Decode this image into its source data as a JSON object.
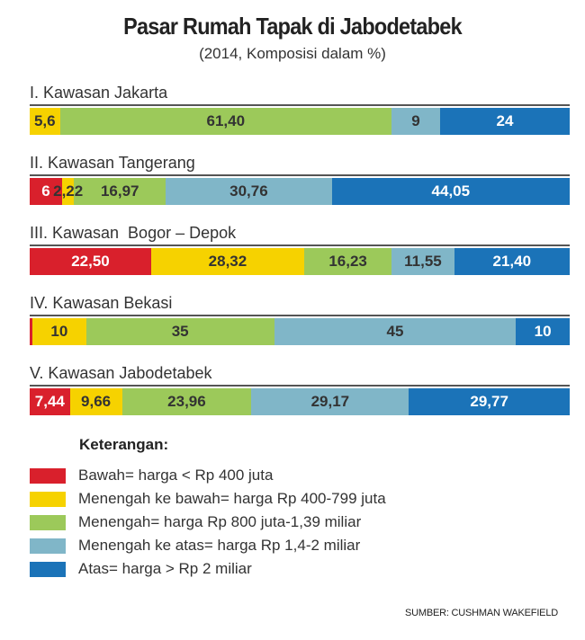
{
  "title": "Pasar Rumah Tapak di Jabodetabek",
  "subtitle": "(2014, Komposisi dalam %)",
  "colors": {
    "bawah": "#d9202c",
    "menengah_ke_bawah": "#f6d200",
    "menengah": "#9cc95a",
    "menengah_ke_atas": "#80b6c8",
    "atas": "#1b73b8"
  },
  "legend_title": "Keterangan:",
  "legend": [
    {
      "key": "bawah",
      "label": "Bawah= harga < Rp 400 juta"
    },
    {
      "key": "menengah_ke_bawah",
      "label": "Menengah ke bawah= harga Rp 400-799 juta"
    },
    {
      "key": "menengah",
      "label": "Menengah= harga Rp 800 juta-1,39 miliar"
    },
    {
      "key": "menengah_ke_atas",
      "label": "Menengah ke atas= harga Rp 1,4-2 miliar"
    },
    {
      "key": "atas",
      "label": "Atas= harga > Rp 2 miliar"
    }
  ],
  "source": "SUMBER: CUSHMAN WAKEFIELD",
  "chart_data": {
    "type": "bar",
    "orientation": "horizontal-stacked-100",
    "title": "Pasar Rumah Tapak di Jabodetabek",
    "subtitle": "(2014, Komposisi dalam %)",
    "series_keys": [
      "bawah",
      "menengah_ke_bawah",
      "menengah",
      "menengah_ke_atas",
      "atas"
    ],
    "categories": [
      {
        "label": "I. Kawasan Jakarta",
        "values": [
          0,
          5.6,
          61.4,
          9,
          24
        ],
        "labels": [
          "",
          "5,6",
          "61,40",
          "9",
          "24"
        ]
      },
      {
        "label": "II. Kawasan Tangerang",
        "values": [
          6,
          2.22,
          16.97,
          30.76,
          44.05
        ],
        "labels": [
          "6",
          "2,22",
          "16,97",
          "30,76",
          "44,05"
        ]
      },
      {
        "label": "III. Kawasan  Bogor – Depok",
        "values": [
          22.5,
          28.32,
          16.23,
          11.55,
          21.4
        ],
        "labels": [
          "22,50",
          "28,32",
          "16,23",
          "11,55",
          "21,40"
        ]
      },
      {
        "label": "IV. Kawasan Bekasi",
        "values": [
          0.5,
          10,
          35,
          45,
          10
        ],
        "labels": [
          "",
          "10",
          "35",
          "45",
          "10"
        ]
      },
      {
        "label": "V. Kawasan Jabodetabek",
        "values": [
          7.44,
          9.66,
          23.96,
          29.17,
          29.77
        ],
        "labels": [
          "7,44",
          "9,66",
          "23,96",
          "29,17",
          "29,77"
        ]
      }
    ]
  }
}
